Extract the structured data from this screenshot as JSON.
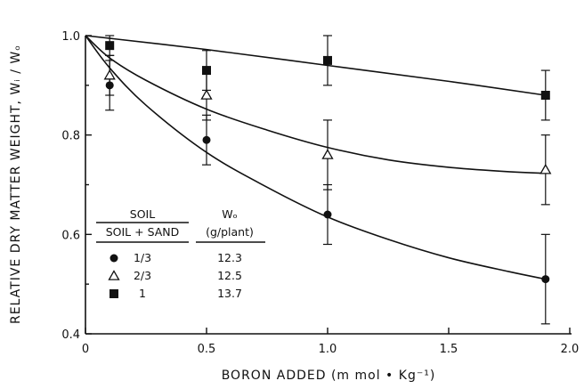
{
  "chart_data": {
    "type": "scatter",
    "xlabel": "BORON ADDED (m mol • Kg⁻¹)",
    "ylabel": "RELATIVE DRY MATTER WEIGHT, Wᵢ / Wₒ",
    "xlim": [
      0,
      2.0
    ],
    "ylim": [
      0.4,
      1.0
    ],
    "x_ticks": [
      "0",
      "0.5",
      "1.0",
      "1.5",
      "2.0"
    ],
    "y_ticks": [
      "0.4",
      "0.6",
      "0.8",
      "1.0"
    ],
    "series": [
      {
        "marker": "filled-circle",
        "x": [
          0.1,
          0.5,
          1.0,
          1.9
        ],
        "y": [
          0.9,
          0.79,
          0.64,
          0.51
        ],
        "err": [
          0.05,
          0.05,
          0.06,
          0.09
        ],
        "curve": [
          [
            0,
            1.0
          ],
          [
            0.1,
            0.935
          ],
          [
            0.25,
            0.86
          ],
          [
            0.5,
            0.765
          ],
          [
            0.75,
            0.695
          ],
          [
            1.0,
            0.635
          ],
          [
            1.25,
            0.59
          ],
          [
            1.5,
            0.553
          ],
          [
            1.75,
            0.525
          ],
          [
            1.9,
            0.51
          ]
        ]
      },
      {
        "marker": "open-triangle",
        "x": [
          0.1,
          0.5,
          1.0,
          1.9
        ],
        "y": [
          0.92,
          0.88,
          0.76,
          0.73
        ],
        "err": [
          0.04,
          0.05,
          0.07,
          0.07
        ],
        "curve": [
          [
            0,
            1.0
          ],
          [
            0.1,
            0.955
          ],
          [
            0.25,
            0.91
          ],
          [
            0.5,
            0.852
          ],
          [
            0.75,
            0.81
          ],
          [
            1.0,
            0.775
          ],
          [
            1.25,
            0.75
          ],
          [
            1.5,
            0.735
          ],
          [
            1.75,
            0.726
          ],
          [
            1.9,
            0.723
          ]
        ]
      },
      {
        "marker": "filled-square",
        "x": [
          0.1,
          0.5,
          1.0,
          1.9
        ],
        "y": [
          0.98,
          0.93,
          0.95,
          0.88
        ],
        "err": [
          0.02,
          0.04,
          0.05,
          0.05
        ],
        "curve": [
          [
            0,
            1.0
          ],
          [
            0.5,
            0.972
          ],
          [
            1.0,
            0.94
          ],
          [
            1.5,
            0.908
          ],
          [
            1.9,
            0.88
          ]
        ]
      }
    ],
    "legend": {
      "placement": "bottom-left",
      "col1_header_top": "SOIL",
      "col1_header_bottom": "SOIL + SAND",
      "col2_header_top": "Wₒ",
      "col2_header_bottom": "(g/plant)",
      "rows": [
        {
          "marker": "filled-circle",
          "ratio": "1/3",
          "w0": "12.3"
        },
        {
          "marker": "open-triangle",
          "ratio": "2/3",
          "w0": "12.5"
        },
        {
          "marker": "filled-square",
          "ratio": "1",
          "w0": "13.7"
        }
      ]
    }
  }
}
